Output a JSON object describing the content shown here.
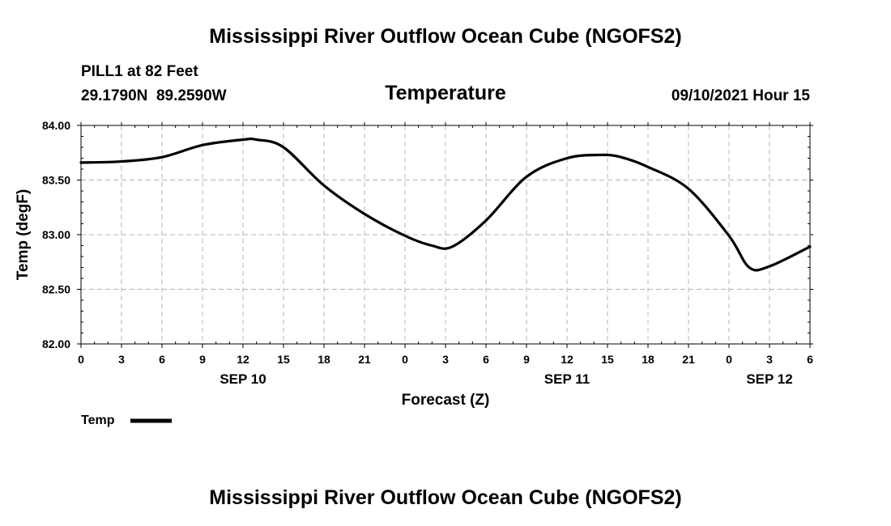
{
  "header": {
    "title": "Mississippi River Outflow Ocean Cube (NGOFS2)",
    "station": "PILL1 at 82 Feet",
    "coordinates": "29.1790N  89.2590W",
    "variable": "Temperature",
    "timestamp": "09/10/2021 Hour 15"
  },
  "footer": {
    "title": "Mississippi River Outflow Ocean Cube (NGOFS2)"
  },
  "chart_data": {
    "type": "line",
    "title": "Temperature",
    "xlabel": "Forecast (Z)",
    "ylabel": "Temp (degF)",
    "xlim": [
      0,
      54
    ],
    "ylim": [
      82.0,
      84.0
    ],
    "grid": true,
    "x_ticks": [
      0,
      3,
      6,
      9,
      12,
      15,
      18,
      21,
      24,
      27,
      30,
      33,
      36,
      39,
      42,
      45,
      48,
      51,
      54
    ],
    "x_tick_labels": [
      "0",
      "3",
      "6",
      "9",
      "12",
      "15",
      "18",
      "21",
      "0",
      "3",
      "6",
      "9",
      "12",
      "15",
      "18",
      "21",
      "0",
      "3",
      "6"
    ],
    "date_labels": [
      {
        "x": 12,
        "label": "SEP 10"
      },
      {
        "x": 36,
        "label": "SEP 11"
      },
      {
        "x": 51,
        "label": "SEP 12"
      }
    ],
    "y_ticks": [
      82.0,
      82.5,
      83.0,
      83.5,
      84.0
    ],
    "y_tick_labels": [
      "82.00",
      "82.50",
      "83.00",
      "83.50",
      "84.00"
    ],
    "legend": {
      "position": "bottom-left",
      "label": "Temp"
    },
    "series": [
      {
        "name": "Temp",
        "color": "#000000",
        "x": [
          0,
          3,
          6,
          9,
          12,
          13,
          15,
          18,
          21,
          24,
          26,
          27.5,
          30,
          33,
          36,
          38.5,
          40,
          42,
          45,
          48,
          49.5,
          51,
          54
        ],
        "y": [
          83.66,
          83.67,
          83.71,
          83.82,
          83.87,
          83.87,
          83.8,
          83.45,
          83.19,
          82.99,
          82.9,
          82.89,
          83.13,
          83.53,
          83.7,
          83.73,
          83.71,
          83.62,
          83.42,
          82.99,
          82.7,
          82.71,
          82.89
        ]
      }
    ]
  }
}
